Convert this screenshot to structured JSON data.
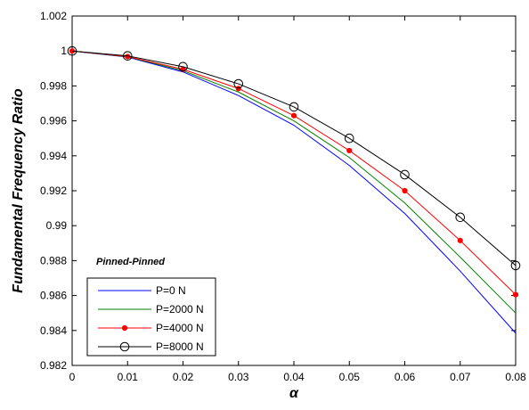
{
  "chart_data": {
    "type": "line",
    "title": "",
    "xlabel": "α",
    "ylabel": "Fundamental Frequency Ratio",
    "annotation": "Pinned-Pinned",
    "xlim": [
      0,
      0.08
    ],
    "ylim": [
      0.982,
      1.002
    ],
    "x_ticks": [
      0,
      0.01,
      0.02,
      0.03,
      0.04,
      0.05,
      0.06,
      0.07,
      0.08
    ],
    "x_tick_labels": [
      "0",
      "0.01",
      "0.02",
      "0.03",
      "0.04",
      "0.05",
      "0.06",
      "0.07",
      "0.08"
    ],
    "y_ticks": [
      0.982,
      0.984,
      0.986,
      0.988,
      0.99,
      0.992,
      0.994,
      0.996,
      0.998,
      1,
      1.002
    ],
    "y_tick_labels": [
      "0.982",
      "0.984",
      "0.986",
      "0.988",
      "0.99",
      "0.992",
      "0.994",
      "0.996",
      "0.998",
      "1",
      "1.002"
    ],
    "grid": false,
    "legend_position": "bottom-left",
    "x": [
      0,
      0.01,
      0.02,
      0.03,
      0.04,
      0.05,
      0.06,
      0.07,
      0.08
    ],
    "series": [
      {
        "name": "P=0 N",
        "color": "#0000ff",
        "marker": "none",
        "values": [
          1.0,
          0.99965,
          0.9988,
          0.99745,
          0.99575,
          0.99345,
          0.9907,
          0.9874,
          0.98385
        ]
      },
      {
        "name": "P=2000 N",
        "color": "#008000",
        "marker": "none",
        "values": [
          1.0,
          0.99967,
          0.99887,
          0.99765,
          0.996,
          0.9939,
          0.9913,
          0.9882,
          0.985
        ]
      },
      {
        "name": "P=4000 N",
        "color": "#ff0000",
        "marker": "dot",
        "values": [
          1.0,
          0.99968,
          0.99895,
          0.99785,
          0.9963,
          0.9943,
          0.992,
          0.98915,
          0.98605
        ]
      },
      {
        "name": "P=8000 N",
        "color": "#000000",
        "marker": "circle",
        "values": [
          1.0,
          0.99972,
          0.9991,
          0.99812,
          0.9968,
          0.995,
          0.99292,
          0.99048,
          0.98772
        ]
      }
    ]
  }
}
